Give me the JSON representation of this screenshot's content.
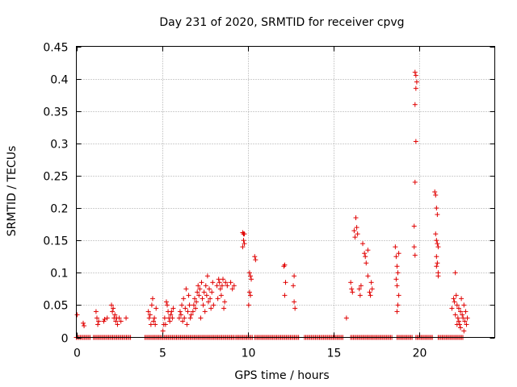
{
  "chart_data": {
    "type": "scatter",
    "title": "Day 231 of 2020, SRMTID for receiver cpvg",
    "xlabel": "GPS time / hours",
    "ylabel": "SRMTID / TECUs",
    "xlim": [
      0,
      24.4
    ],
    "ylim": [
      0,
      0.45
    ],
    "xticks": [
      0,
      5,
      10,
      15,
      20
    ],
    "xtick_labels": [
      "0",
      "5",
      "10",
      "15",
      "20"
    ],
    "yticks": [
      0,
      0.05,
      0.1,
      0.15,
      0.2,
      0.25,
      0.3,
      0.35,
      0.4,
      0.45
    ],
    "ytick_labels": [
      "0",
      "0.05",
      "0.1",
      "0.15",
      "0.2",
      "0.25",
      "0.3",
      "0.35",
      "0.4",
      "0.45"
    ],
    "grid": true,
    "marker": "plus",
    "color": "#e00000",
    "zero_bands": [
      [
        0,
        0.8
      ],
      [
        1.0,
        3.2
      ],
      [
        4.0,
        9.2
      ],
      [
        9.3,
        10.3
      ],
      [
        10.4,
        13.0
      ],
      [
        13.3,
        15.6
      ],
      [
        16.0,
        18.4
      ],
      [
        18.7,
        19.6
      ],
      [
        19.8,
        20.8
      ],
      [
        21.1,
        22.6
      ]
    ],
    "series": [
      {
        "name": "SRMTID",
        "points": [
          [
            0.05,
            0.035
          ],
          [
            0.4,
            0.022
          ],
          [
            0.45,
            0.018
          ],
          [
            1.15,
            0.04
          ],
          [
            1.2,
            0.03
          ],
          [
            1.25,
            0.02
          ],
          [
            1.3,
            0.025
          ],
          [
            1.6,
            0.025
          ],
          [
            1.65,
            0.028
          ],
          [
            1.8,
            0.03
          ],
          [
            2.05,
            0.05
          ],
          [
            2.1,
            0.04
          ],
          [
            2.15,
            0.045
          ],
          [
            2.2,
            0.03
          ],
          [
            2.25,
            0.035
          ],
          [
            2.3,
            0.025
          ],
          [
            2.35,
            0.03
          ],
          [
            2.4,
            0.02
          ],
          [
            2.5,
            0.03
          ],
          [
            2.6,
            0.025
          ],
          [
            2.9,
            0.03
          ],
          [
            4.2,
            0.04
          ],
          [
            4.25,
            0.03
          ],
          [
            4.3,
            0.035
          ],
          [
            4.35,
            0.02
          ],
          [
            4.4,
            0.05
          ],
          [
            4.45,
            0.06
          ],
          [
            4.5,
            0.025
          ],
          [
            4.55,
            0.03
          ],
          [
            4.6,
            0.02
          ],
          [
            4.65,
            0.045
          ],
          [
            5.05,
            0.01
          ],
          [
            5.1,
            0.02
          ],
          [
            5.15,
            0.03
          ],
          [
            5.2,
            0.02
          ],
          [
            5.25,
            0.055
          ],
          [
            5.3,
            0.05
          ],
          [
            5.35,
            0.04
          ],
          [
            5.4,
            0.03
          ],
          [
            5.45,
            0.025
          ],
          [
            5.5,
            0.035
          ],
          [
            5.55,
            0.04
          ],
          [
            5.6,
            0.03
          ],
          [
            5.65,
            0.045
          ],
          [
            6.0,
            0.03
          ],
          [
            6.05,
            0.04
          ],
          [
            6.1,
            0.035
          ],
          [
            6.15,
            0.05
          ],
          [
            6.2,
            0.025
          ],
          [
            6.25,
            0.06
          ],
          [
            6.3,
            0.03
          ],
          [
            6.35,
            0.045
          ],
          [
            6.4,
            0.075
          ],
          [
            6.45,
            0.02
          ],
          [
            6.5,
            0.04
          ],
          [
            6.55,
            0.065
          ],
          [
            6.6,
            0.05
          ],
          [
            6.65,
            0.03
          ],
          [
            6.7,
            0.035
          ],
          [
            6.8,
            0.04
          ],
          [
            6.85,
            0.05
          ],
          [
            6.9,
            0.06
          ],
          [
            6.95,
            0.045
          ],
          [
            7.0,
            0.055
          ],
          [
            7.05,
            0.07
          ],
          [
            7.1,
            0.08
          ],
          [
            7.15,
            0.065
          ],
          [
            7.2,
            0.075
          ],
          [
            7.25,
            0.03
          ],
          [
            7.3,
            0.085
          ],
          [
            7.35,
            0.06
          ],
          [
            7.4,
            0.05
          ],
          [
            7.45,
            0.07
          ],
          [
            7.5,
            0.04
          ],
          [
            7.55,
            0.08
          ],
          [
            7.6,
            0.065
          ],
          [
            7.65,
            0.095
          ],
          [
            7.7,
            0.055
          ],
          [
            7.75,
            0.075
          ],
          [
            7.8,
            0.06
          ],
          [
            7.85,
            0.045
          ],
          [
            7.9,
            0.07
          ],
          [
            7.95,
            0.085
          ],
          [
            8.0,
            0.05
          ],
          [
            8.2,
            0.08
          ],
          [
            8.25,
            0.06
          ],
          [
            8.3,
            0.09
          ],
          [
            8.35,
            0.085
          ],
          [
            8.4,
            0.075
          ],
          [
            8.45,
            0.065
          ],
          [
            8.5,
            0.08
          ],
          [
            8.55,
            0.09
          ],
          [
            8.6,
            0.045
          ],
          [
            8.65,
            0.055
          ],
          [
            8.7,
            0.085
          ],
          [
            8.8,
            0.08
          ],
          [
            9.0,
            0.085
          ],
          [
            9.1,
            0.075
          ],
          [
            9.2,
            0.08
          ],
          [
            9.7,
            0.162
          ],
          [
            9.75,
            0.16
          ],
          [
            9.8,
            0.16
          ],
          [
            9.7,
            0.14
          ],
          [
            9.8,
            0.145
          ],
          [
            9.75,
            0.15
          ],
          [
            10.1,
            0.1
          ],
          [
            10.15,
            0.095
          ],
          [
            10.2,
            0.09
          ],
          [
            10.1,
            0.07
          ],
          [
            10.15,
            0.065
          ],
          [
            10.05,
            0.05
          ],
          [
            10.4,
            0.125
          ],
          [
            10.45,
            0.12
          ],
          [
            12.1,
            0.11
          ],
          [
            12.15,
            0.112
          ],
          [
            12.2,
            0.085
          ],
          [
            12.15,
            0.065
          ],
          [
            12.7,
            0.095
          ],
          [
            12.65,
            0.08
          ],
          [
            12.7,
            0.055
          ],
          [
            12.75,
            0.045
          ],
          [
            15.75,
            0.03
          ],
          [
            16.0,
            0.085
          ],
          [
            16.05,
            0.075
          ],
          [
            16.1,
            0.07
          ],
          [
            16.2,
            0.165
          ],
          [
            16.25,
            0.155
          ],
          [
            16.3,
            0.185
          ],
          [
            16.35,
            0.17
          ],
          [
            16.4,
            0.16
          ],
          [
            16.5,
            0.075
          ],
          [
            16.55,
            0.065
          ],
          [
            16.6,
            0.08
          ],
          [
            16.7,
            0.145
          ],
          [
            16.8,
            0.13
          ],
          [
            16.85,
            0.125
          ],
          [
            16.9,
            0.115
          ],
          [
            17.0,
            0.135
          ],
          [
            17.0,
            0.095
          ],
          [
            17.1,
            0.07
          ],
          [
            17.15,
            0.065
          ],
          [
            17.2,
            0.085
          ],
          [
            17.25,
            0.075
          ],
          [
            18.6,
            0.14
          ],
          [
            18.65,
            0.125
          ],
          [
            18.7,
            0.11
          ],
          [
            18.75,
            0.1
          ],
          [
            18.65,
            0.09
          ],
          [
            18.7,
            0.08
          ],
          [
            18.8,
            0.065
          ],
          [
            18.75,
            0.05
          ],
          [
            18.7,
            0.04
          ],
          [
            18.8,
            0.13
          ],
          [
            19.75,
            0.41
          ],
          [
            19.8,
            0.405
          ],
          [
            19.85,
            0.395
          ],
          [
            19.8,
            0.385
          ],
          [
            19.75,
            0.36
          ],
          [
            19.8,
            0.303
          ],
          [
            19.75,
            0.24
          ],
          [
            19.7,
            0.172
          ],
          [
            19.7,
            0.14
          ],
          [
            19.75,
            0.127
          ],
          [
            20.9,
            0.225
          ],
          [
            20.95,
            0.22
          ],
          [
            21.0,
            0.2
          ],
          [
            21.05,
            0.19
          ],
          [
            20.95,
            0.16
          ],
          [
            21.0,
            0.15
          ],
          [
            21.05,
            0.145
          ],
          [
            21.1,
            0.14
          ],
          [
            21.0,
            0.125
          ],
          [
            21.05,
            0.115
          ],
          [
            21.1,
            0.1
          ],
          [
            21.0,
            0.11
          ],
          [
            21.1,
            0.095
          ],
          [
            21.9,
            0.045
          ],
          [
            22.0,
            0.06
          ],
          [
            22.05,
            0.055
          ],
          [
            22.1,
            0.1
          ],
          [
            22.15,
            0.065
          ],
          [
            22.2,
            0.05
          ],
          [
            22.25,
            0.03
          ],
          [
            22.3,
            0.025
          ],
          [
            22.35,
            0.02
          ],
          [
            22.4,
            0.04
          ],
          [
            22.45,
            0.06
          ],
          [
            22.5,
            0.035
          ],
          [
            22.55,
            0.03
          ],
          [
            22.6,
            0.05
          ],
          [
            22.65,
            0.025
          ],
          [
            22.7,
            0.04
          ],
          [
            22.75,
            0.02
          ],
          [
            22.8,
            0.03
          ],
          [
            22.2,
            0.02
          ],
          [
            22.4,
            0.015
          ],
          [
            22.6,
            0.01
          ],
          [
            22.1,
            0.035
          ],
          [
            22.3,
            0.045
          ]
        ]
      }
    ]
  }
}
